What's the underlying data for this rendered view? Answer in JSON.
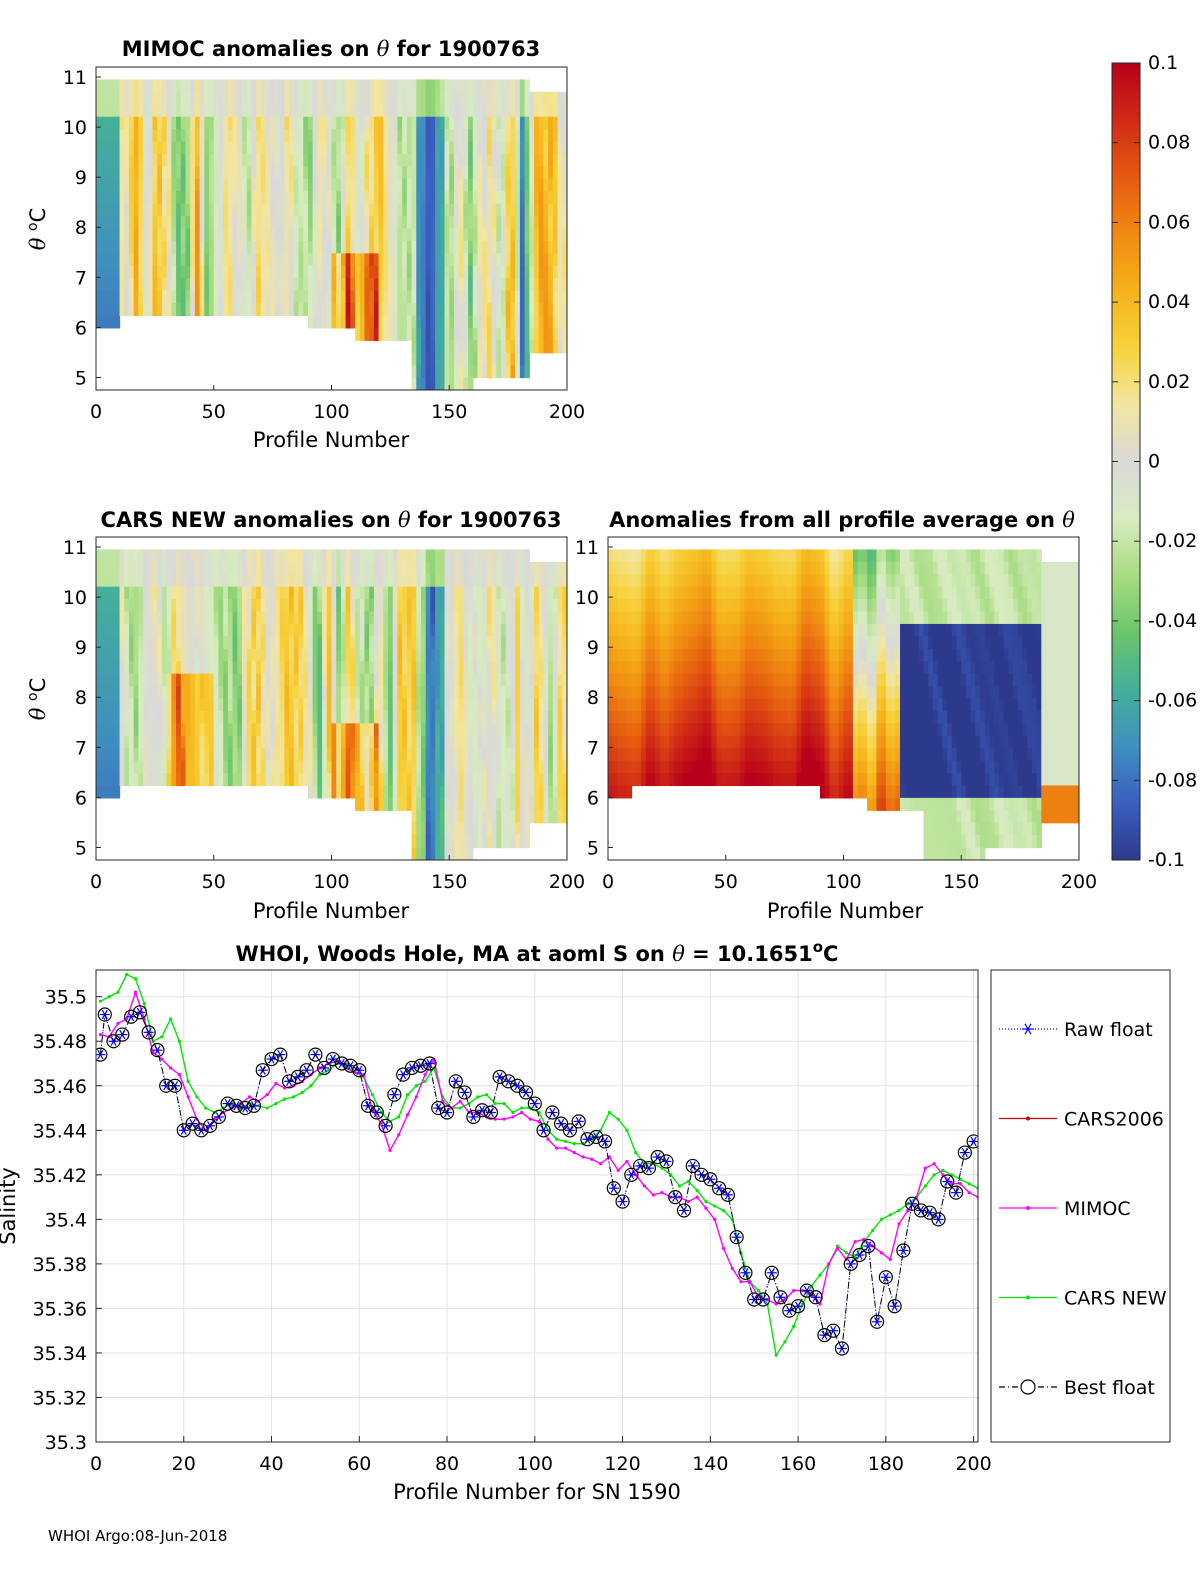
{
  "footer": "WHOI Argo:08-Jun-2018",
  "colorbar": {
    "range": [
      -0.1,
      0.1
    ],
    "ticks": [
      "0.1",
      "0.08",
      "0.06",
      "0.04",
      "0.02",
      "0",
      "-0.02",
      "-0.04",
      "-0.06",
      "-0.08",
      "-0.1"
    ],
    "colors": [
      "#2d3a8c",
      "#3b5fbf",
      "#3f8fbf",
      "#45b09a",
      "#6cc56a",
      "#a8dc82",
      "#d8ecc0",
      "#d9d9d9",
      "#f2e6a0",
      "#f7d23c",
      "#f5b21a",
      "#f08a12",
      "#e55a10",
      "#cf2a16",
      "#b8001a"
    ]
  },
  "heatmaps": [
    {
      "title_parts": [
        "MIMOC anomalies on ",
        "θ",
        "  for 1900763"
      ],
      "xlabel": "Profile Number",
      "ylabel_parts": [
        "θ",
        " ",
        "o",
        "C"
      ],
      "xticks": [
        "0",
        "50",
        "100",
        "150",
        "200"
      ],
      "yticks": [
        "5",
        "6",
        "7",
        "8",
        "9",
        "10",
        "11"
      ],
      "xlim": [
        0,
        200
      ],
      "ylim": [
        4.75,
        11.2
      ]
    },
    {
      "title_parts": [
        "CARS NEW anomalies on ",
        "θ",
        " for 1900763"
      ],
      "xlabel": "Profile Number",
      "ylabel_parts": [
        "θ",
        " ",
        "o",
        "C"
      ],
      "xticks": [
        "0",
        "50",
        "100",
        "150",
        "200"
      ],
      "yticks": [
        "5",
        "6",
        "7",
        "8",
        "9",
        "10",
        "11"
      ],
      "xlim": [
        0,
        200
      ],
      "ylim": [
        4.75,
        11.2
      ]
    },
    {
      "title_parts": [
        "Anomalies from all profile average on ",
        "θ"
      ],
      "xlabel": "Profile Number",
      "ylabel_parts": [],
      "xticks": [
        "0",
        "50",
        "100",
        "150",
        "200"
      ],
      "yticks": [
        "5",
        "6",
        "7",
        "8",
        "9",
        "10",
        "11"
      ],
      "xlim": [
        0,
        200
      ],
      "ylim": [
        4.75,
        11.2
      ]
    }
  ],
  "chart_data": {
    "type": "line",
    "title_parts": [
      "WHOI, Woods Hole, MA at aoml S on ",
      "θ",
      " = 10.1651",
      "o",
      "C"
    ],
    "xlabel": "Profile Number for SN 1590",
    "ylabel": "Salinity",
    "xlim": [
      0,
      201
    ],
    "ylim": [
      35.3,
      35.512
    ],
    "xticks": [
      "0",
      "20",
      "40",
      "60",
      "80",
      "100",
      "120",
      "140",
      "160",
      "180",
      "200"
    ],
    "yticks": [
      "35.3",
      "35.32",
      "35.34",
      "35.36",
      "35.38",
      "35.4",
      "35.42",
      "35.44",
      "35.46",
      "35.48",
      "35.5"
    ],
    "grid": true,
    "legend": [
      "Raw float",
      "CARS2006",
      "MIMOC",
      "CARS NEW",
      "Best float"
    ],
    "series": [
      {
        "name": "Raw float",
        "color": "#0000ff",
        "x": [
          1,
          2,
          4,
          6,
          8,
          10,
          12,
          14,
          16,
          18,
          20,
          22,
          24,
          26,
          28,
          30,
          32,
          34,
          36,
          38,
          40,
          42,
          44,
          46,
          48,
          50,
          52,
          54,
          56,
          58,
          60,
          62,
          64,
          66,
          68,
          70,
          72,
          74,
          76,
          78,
          80,
          82,
          84,
          86,
          88,
          90,
          92,
          94,
          96,
          98,
          100,
          102,
          104,
          106,
          108,
          110,
          112,
          114,
          116,
          118,
          120,
          122,
          124,
          126,
          128,
          130,
          132,
          134,
          136,
          138,
          140,
          142,
          144,
          146,
          148,
          150,
          152,
          154,
          156,
          158,
          160,
          162,
          164,
          166,
          168,
          170,
          172,
          174,
          176,
          178,
          180,
          182,
          184,
          186,
          188,
          190,
          192,
          194,
          196,
          198,
          200
        ],
        "values": [
          35.474,
          35.492,
          35.48,
          35.483,
          35.491,
          35.493,
          35.484,
          35.476,
          35.46,
          35.46,
          35.44,
          35.443,
          35.44,
          35.442,
          35.446,
          35.452,
          35.451,
          35.45,
          35.451,
          35.467,
          35.472,
          35.474,
          35.462,
          35.464,
          35.467,
          35.474,
          35.468,
          35.472,
          35.47,
          35.469,
          35.467,
          35.451,
          35.448,
          35.442,
          35.456,
          35.465,
          35.468,
          35.469,
          35.47,
          35.45,
          35.448,
          35.462,
          35.457,
          35.446,
          35.449,
          35.448,
          35.464,
          35.462,
          35.46,
          35.457,
          35.452,
          35.44,
          35.448,
          35.443,
          35.44,
          35.444,
          35.436,
          35.437,
          35.435,
          35.414,
          35.408,
          35.42,
          35.424,
          35.423,
          35.428,
          35.426,
          35.41,
          35.404,
          35.424,
          35.42,
          35.418,
          35.414,
          35.411,
          35.392,
          35.376,
          35.364,
          35.364,
          35.376,
          35.365,
          35.359,
          35.361,
          35.368,
          35.365,
          35.348,
          35.35,
          35.342,
          35.38,
          35.384,
          35.388,
          35.354,
          35.374,
          35.361,
          35.386,
          35.407,
          35.404,
          35.403,
          35.4,
          35.417,
          35.412,
          35.43,
          35.435
        ]
      },
      {
        "name": "CARS2006",
        "color": "#cc0000",
        "x": [],
        "values": []
      },
      {
        "name": "MIMOC",
        "color": "#ff00ff",
        "x": [
          1,
          3,
          5,
          7,
          9,
          11,
          13,
          15,
          17,
          19,
          21,
          23,
          25,
          27,
          29,
          31,
          33,
          35,
          37,
          39,
          41,
          43,
          45,
          47,
          49,
          51,
          53,
          55,
          57,
          59,
          61,
          63,
          65,
          67,
          69,
          71,
          73,
          75,
          77,
          79,
          81,
          83,
          85,
          87,
          89,
          91,
          93,
          95,
          97,
          99,
          101,
          103,
          105,
          107,
          109,
          111,
          113,
          115,
          117,
          119,
          121,
          123,
          125,
          127,
          129,
          131,
          133,
          135,
          137,
          139,
          141,
          143,
          145,
          147,
          149,
          151,
          153,
          155,
          157,
          159,
          161,
          163,
          165,
          167,
          169,
          171,
          173,
          175,
          177,
          179,
          181,
          183,
          185,
          187,
          189,
          191,
          193,
          195,
          197,
          199,
          201
        ],
        "values": [
          35.483,
          35.482,
          35.488,
          35.49,
          35.502,
          35.49,
          35.475,
          35.472,
          35.468,
          35.465,
          35.455,
          35.445,
          35.44,
          35.445,
          35.448,
          35.45,
          35.452,
          35.455,
          35.453,
          35.456,
          35.461,
          35.459,
          35.46,
          35.462,
          35.465,
          35.468,
          35.47,
          35.471,
          35.468,
          35.466,
          35.465,
          35.449,
          35.443,
          35.431,
          35.438,
          35.447,
          35.455,
          35.465,
          35.472,
          35.453,
          35.45,
          35.453,
          35.448,
          35.448,
          35.446,
          35.445,
          35.445,
          35.446,
          35.448,
          35.445,
          35.444,
          35.436,
          35.432,
          35.432,
          35.43,
          35.428,
          35.427,
          35.425,
          35.428,
          35.422,
          35.426,
          35.42,
          35.415,
          35.411,
          35.412,
          35.41,
          35.41,
          35.408,
          35.41,
          35.405,
          35.4,
          35.387,
          35.378,
          35.372,
          35.372,
          35.365,
          35.364,
          35.362,
          35.364,
          35.368,
          35.368,
          35.366,
          35.362,
          35.38,
          35.387,
          35.382,
          35.39,
          35.391,
          35.388,
          35.385,
          35.382,
          35.398,
          35.404,
          35.41,
          35.423,
          35.425,
          35.42,
          35.416,
          35.416,
          35.412,
          35.41
        ]
      },
      {
        "name": "CARS NEW",
        "color": "#00e600",
        "x": [
          1,
          3,
          5,
          7,
          9,
          11,
          13,
          15,
          17,
          19,
          21,
          23,
          25,
          27,
          29,
          31,
          33,
          35,
          37,
          39,
          41,
          43,
          45,
          47,
          49,
          51,
          53,
          55,
          57,
          59,
          61,
          63,
          65,
          67,
          69,
          71,
          73,
          75,
          77,
          79,
          81,
          83,
          85,
          87,
          89,
          91,
          93,
          95,
          97,
          99,
          101,
          103,
          105,
          107,
          109,
          111,
          113,
          115,
          117,
          119,
          121,
          123,
          125,
          127,
          129,
          131,
          133,
          135,
          137,
          139,
          141,
          143,
          145,
          147,
          149,
          151,
          153,
          155,
          157,
          159,
          161,
          163,
          165,
          167,
          169,
          171,
          173,
          175,
          177,
          179,
          181,
          183,
          185,
          187,
          189,
          191,
          193,
          195,
          197,
          199,
          201
        ],
        "values": [
          35.498,
          35.5,
          35.502,
          35.51,
          35.508,
          35.497,
          35.48,
          35.482,
          35.49,
          35.48,
          35.462,
          35.455,
          35.45,
          35.448,
          35.45,
          35.452,
          35.45,
          35.452,
          35.451,
          35.45,
          35.452,
          35.454,
          35.455,
          35.457,
          35.46,
          35.465,
          35.467,
          35.47,
          35.469,
          35.466,
          35.464,
          35.456,
          35.448,
          35.444,
          35.446,
          35.456,
          35.46,
          35.462,
          35.468,
          35.455,
          35.45,
          35.45,
          35.452,
          35.455,
          35.456,
          35.452,
          35.452,
          35.448,
          35.45,
          35.45,
          35.448,
          35.44,
          35.436,
          35.435,
          35.434,
          35.434,
          35.436,
          35.44,
          35.448,
          35.445,
          35.44,
          35.43,
          35.425,
          35.425,
          35.423,
          35.42,
          35.415,
          35.417,
          35.413,
          35.408,
          35.406,
          35.404,
          35.4,
          35.385,
          35.372,
          35.368,
          35.362,
          35.339,
          35.345,
          35.352,
          35.362,
          35.37,
          35.375,
          35.38,
          35.388,
          35.385,
          35.383,
          35.39,
          35.395,
          35.4,
          35.402,
          35.404,
          35.407,
          35.41,
          35.415,
          35.42,
          35.422,
          35.42,
          35.418,
          35.416,
          35.414
        ]
      },
      {
        "name": "Best float",
        "color": "#000000",
        "x": [
          1,
          2,
          4,
          6,
          8,
          10,
          12,
          14,
          16,
          18,
          20,
          22,
          24,
          26,
          28,
          30,
          32,
          34,
          36,
          38,
          40,
          42,
          44,
          46,
          48,
          50,
          52,
          54,
          56,
          58,
          60,
          62,
          64,
          66,
          68,
          70,
          72,
          74,
          76,
          78,
          80,
          82,
          84,
          86,
          88,
          90,
          92,
          94,
          96,
          98,
          100,
          102,
          104,
          106,
          108,
          110,
          112,
          114,
          116,
          118,
          120,
          122,
          124,
          126,
          128,
          130,
          132,
          134,
          136,
          138,
          140,
          142,
          144,
          146,
          148,
          150,
          152,
          154,
          156,
          158,
          160,
          162,
          164,
          166,
          168,
          170,
          172,
          174,
          176,
          178,
          180,
          182,
          184,
          186,
          188,
          190,
          192,
          194,
          196,
          198,
          200
        ],
        "values": [
          35.474,
          35.492,
          35.48,
          35.483,
          35.491,
          35.493,
          35.484,
          35.476,
          35.46,
          35.46,
          35.44,
          35.443,
          35.44,
          35.442,
          35.446,
          35.452,
          35.451,
          35.45,
          35.451,
          35.467,
          35.472,
          35.474,
          35.462,
          35.464,
          35.467,
          35.474,
          35.468,
          35.472,
          35.47,
          35.469,
          35.467,
          35.451,
          35.448,
          35.442,
          35.456,
          35.465,
          35.468,
          35.469,
          35.47,
          35.45,
          35.448,
          35.462,
          35.457,
          35.446,
          35.449,
          35.448,
          35.464,
          35.462,
          35.46,
          35.457,
          35.452,
          35.44,
          35.448,
          35.443,
          35.44,
          35.444,
          35.436,
          35.437,
          35.435,
          35.414,
          35.408,
          35.42,
          35.424,
          35.423,
          35.428,
          35.426,
          35.41,
          35.404,
          35.424,
          35.42,
          35.418,
          35.414,
          35.411,
          35.392,
          35.376,
          35.364,
          35.364,
          35.376,
          35.365,
          35.359,
          35.361,
          35.368,
          35.365,
          35.348,
          35.35,
          35.342,
          35.38,
          35.384,
          35.388,
          35.354,
          35.374,
          35.361,
          35.386,
          35.407,
          35.404,
          35.403,
          35.4,
          35.417,
          35.412,
          35.43,
          35.435
        ]
      }
    ]
  }
}
